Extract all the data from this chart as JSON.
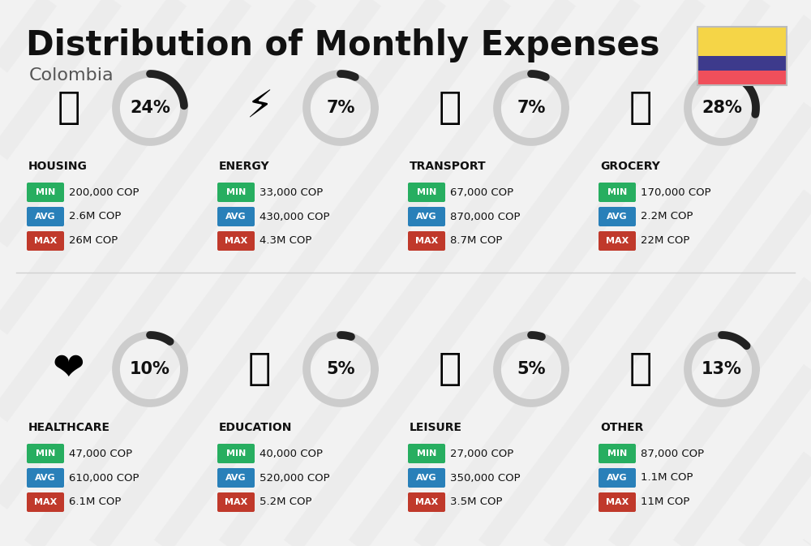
{
  "title": "Distribution of Monthly Expenses",
  "subtitle": "Colombia",
  "background_color": "#f2f2f2",
  "title_fontsize": 30,
  "subtitle_fontsize": 16,
  "categories": [
    {
      "name": "HOUSING",
      "percent": 24,
      "min": "200,000 COP",
      "avg": "2.6M COP",
      "max": "26M COP",
      "icon": "🏗",
      "row": 0,
      "col": 0
    },
    {
      "name": "ENERGY",
      "percent": 7,
      "min": "33,000 COP",
      "avg": "430,000 COP",
      "max": "4.3M COP",
      "icon": "⚡",
      "row": 0,
      "col": 1
    },
    {
      "name": "TRANSPORT",
      "percent": 7,
      "min": "67,000 COP",
      "avg": "870,000 COP",
      "max": "8.7M COP",
      "icon": "🚌",
      "row": 0,
      "col": 2
    },
    {
      "name": "GROCERY",
      "percent": 28,
      "min": "170,000 COP",
      "avg": "2.2M COP",
      "max": "22M COP",
      "icon": "🛒",
      "row": 0,
      "col": 3
    },
    {
      "name": "HEALTHCARE",
      "percent": 10,
      "min": "47,000 COP",
      "avg": "610,000 COP",
      "max": "6.1M COP",
      "icon": "🦠",
      "row": 1,
      "col": 0
    },
    {
      "name": "EDUCATION",
      "percent": 5,
      "min": "40,000 COP",
      "avg": "520,000 COP",
      "max": "5.2M COP",
      "icon": "🎓",
      "row": 1,
      "col": 1
    },
    {
      "name": "LEISURE",
      "percent": 5,
      "min": "27,000 COP",
      "avg": "350,000 COP",
      "max": "3.5M COP",
      "icon": "🛍",
      "row": 1,
      "col": 2
    },
    {
      "name": "OTHER",
      "percent": 13,
      "min": "87,000 COP",
      "avg": "1.1M COP",
      "max": "11M COP",
      "icon": "👜",
      "row": 1,
      "col": 3
    }
  ],
  "label_bg_min": "#27ae60",
  "label_bg_avg": "#2980b9",
  "label_bg_max": "#c0392b",
  "circle_bg": "#cccccc",
  "circle_fg": "#222222",
  "text_dark": "#111111",
  "flag_yellow": "#F5D547",
  "flag_blue": "#3D3A8C",
  "flag_red": "#F04F5B",
  "stripe_color": "#e8e8e8",
  "divider_color": "#d0d0d0"
}
